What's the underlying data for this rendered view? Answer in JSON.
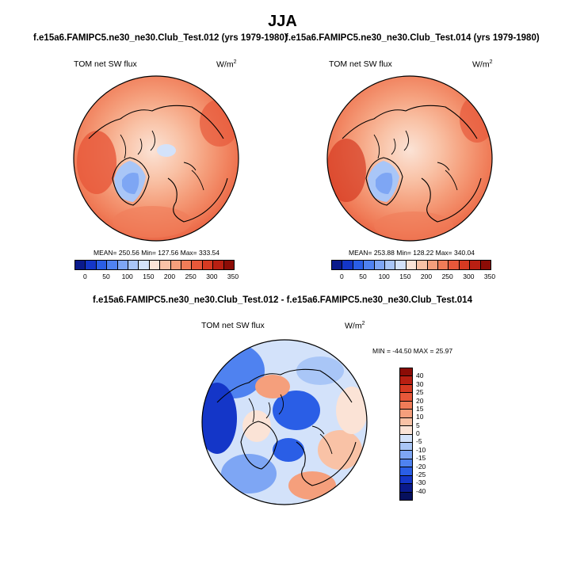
{
  "season": "JJA",
  "panels": [
    {
      "case": "f.e15a6.FAMIPC5.ne30_ne30.Club_Test.012 (yrs 1979-1980)",
      "variable": "TOM net SW flux",
      "units": "W/m",
      "units_exp": "2",
      "stats": "MEAN= 250.56  Min= 127.56  Max= 333.54",
      "colorbar_ticks": [
        "0",
        "50",
        "100",
        "150",
        "200",
        "250",
        "300",
        "350"
      ]
    },
    {
      "case": "f.e15a6.FAMIPC5.ne30_ne30.Club_Test.014 (yrs 1979-1980)",
      "variable": "TOM net SW flux",
      "units": "W/m",
      "units_exp": "2",
      "stats": "MEAN= 253.88  Min= 128.22  Max= 340.04",
      "colorbar_ticks": [
        "0",
        "50",
        "100",
        "150",
        "200",
        "250",
        "300",
        "350"
      ]
    }
  ],
  "diff": {
    "title": "f.e15a6.FAMIPC5.ne30_ne30.Club_Test.012 - f.e15a6.FAMIPC5.ne30_ne30.Club_Test.014",
    "variable": "TOM net SW flux",
    "units": "W/m",
    "units_exp": "2",
    "stats": "MIN = -44.50 MAX =  25.97",
    "colorbar_ticks": [
      "40",
      "30",
      "25",
      "20",
      "15",
      "10",
      "5",
      "0",
      "-5",
      "-10",
      "-15",
      "-20",
      "-25",
      "-30",
      "-40"
    ]
  },
  "colors": {
    "abs_scale": [
      "#0a1a8c",
      "#1436c8",
      "#2a5ee6",
      "#4f82f0",
      "#7ea6f4",
      "#a9c6f7",
      "#d3e2fa",
      "#fbe3d6",
      "#f9c2a6",
      "#f59f7c",
      "#f07c58",
      "#e7583a",
      "#d63a22",
      "#b81f12",
      "#8c0c06"
    ],
    "diff_scale": [
      "#8c0c06",
      "#b81f12",
      "#d63a22",
      "#e7583a",
      "#f07c58",
      "#f59f7c",
      "#f9c2a6",
      "#fbe3d6",
      "#d3e2fa",
      "#a9c6f7",
      "#7ea6f4",
      "#4f82f0",
      "#2a5ee6",
      "#1436c8",
      "#0a1a8c",
      "#06105e"
    ]
  }
}
